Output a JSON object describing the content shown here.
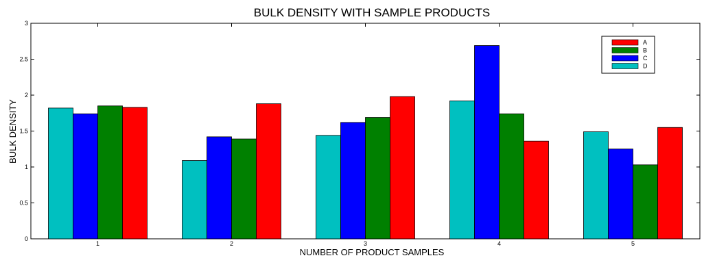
{
  "chart_data": {
    "type": "bar",
    "title": "BULK DENSITY WITH SAMPLE PRODUCTS",
    "xlabel": "NUMBER OF PRODUCT SAMPLES",
    "ylabel": "BULK DENSITY",
    "categories": [
      "1",
      "2",
      "3",
      "4",
      "5"
    ],
    "ylim": [
      0,
      3
    ],
    "yticks": [
      "0",
      "0.5",
      "1",
      "1.5",
      "2",
      "2.5",
      "3"
    ],
    "grid": false,
    "legend_position": "top-right",
    "series": [
      {
        "name": "D",
        "color": "#00c0c0",
        "values": [
          1.82,
          1.09,
          1.44,
          1.92,
          1.49
        ]
      },
      {
        "name": "C",
        "color": "#0000ff",
        "values": [
          1.74,
          1.42,
          1.62,
          2.69,
          1.25
        ]
      },
      {
        "name": "B",
        "color": "#008000",
        "values": [
          1.85,
          1.39,
          1.69,
          1.74,
          1.03
        ]
      },
      {
        "name": "A",
        "color": "#ff0000",
        "values": [
          1.83,
          1.88,
          1.98,
          1.36,
          1.55
        ]
      }
    ],
    "legend_order": [
      "A",
      "B",
      "C",
      "D"
    ]
  }
}
